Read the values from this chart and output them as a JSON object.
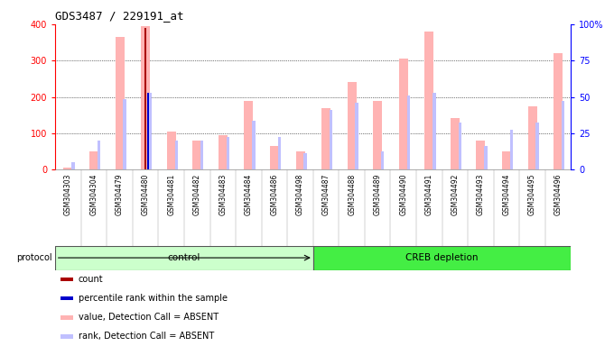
{
  "title": "GDS3487 / 229191_at",
  "samples": [
    "GSM304303",
    "GSM304304",
    "GSM304479",
    "GSM304480",
    "GSM304481",
    "GSM304482",
    "GSM304483",
    "GSM304484",
    "GSM304486",
    "GSM304498",
    "GSM304487",
    "GSM304488",
    "GSM304489",
    "GSM304490",
    "GSM304491",
    "GSM304492",
    "GSM304493",
    "GSM304494",
    "GSM304495",
    "GSM304496"
  ],
  "value_absent": [
    5,
    50,
    365,
    395,
    105,
    80,
    95,
    190,
    65,
    50,
    170,
    240,
    190,
    305,
    380,
    142,
    80,
    50,
    175,
    320
  ],
  "rank_absent": [
    20,
    80,
    195,
    210,
    80,
    80,
    90,
    135,
    90,
    45,
    165,
    185,
    50,
    205,
    210,
    130,
    65,
    110,
    130,
    190
  ],
  "count_val": [
    0,
    0,
    0,
    390,
    0,
    0,
    0,
    0,
    0,
    0,
    0,
    0,
    0,
    0,
    0,
    0,
    0,
    0,
    0,
    0
  ],
  "percentile_val": [
    0,
    0,
    0,
    210,
    0,
    0,
    0,
    0,
    0,
    0,
    0,
    0,
    0,
    0,
    0,
    0,
    0,
    0,
    0,
    0
  ],
  "control_count": 10,
  "creb_count": 10,
  "ylim_left": [
    0,
    400
  ],
  "ylim_right": [
    0,
    100
  ],
  "yticks_left": [
    0,
    100,
    200,
    300,
    400
  ],
  "yticks_right": [
    0,
    25,
    50,
    75,
    100
  ],
  "color_value_absent": "#FFB3B3",
  "color_rank_absent": "#C0C0FF",
  "color_count": "#AA0000",
  "color_percentile": "#0000CC",
  "color_control_bg": "#CCFFCC",
  "color_creb_bg": "#44EE44",
  "color_xtick_bg": "#C8C8C8",
  "protocol_label": "protocol",
  "control_label": "control",
  "creb_label": "CREB depletion",
  "legend_items": [
    {
      "label": "count",
      "color": "#AA0000",
      "marker": "square"
    },
    {
      "label": "percentile rank within the sample",
      "color": "#0000CC",
      "marker": "square"
    },
    {
      "label": "value, Detection Call = ABSENT",
      "color": "#FFB3B3",
      "marker": "square"
    },
    {
      "label": "rank, Detection Call = ABSENT",
      "color": "#C0C0FF",
      "marker": "square"
    }
  ]
}
